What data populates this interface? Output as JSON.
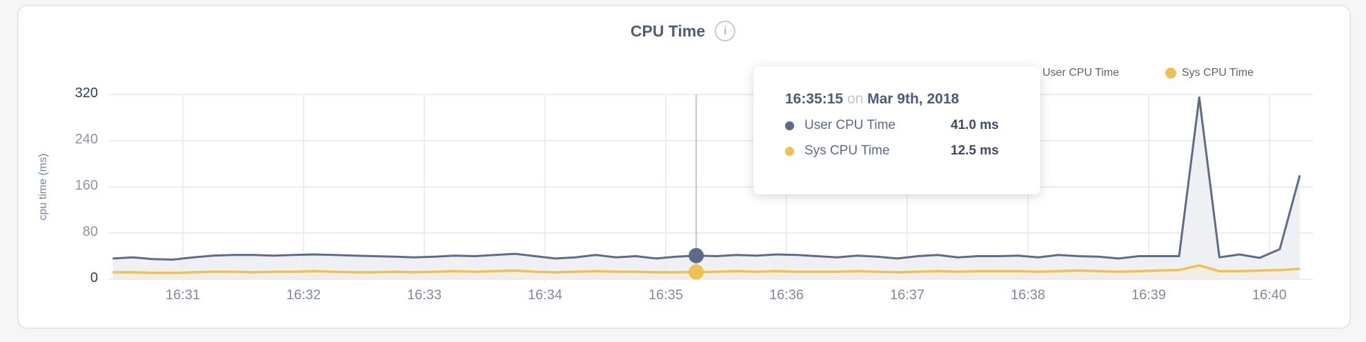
{
  "header": {
    "title": "CPU Time",
    "info_icon": "i"
  },
  "legend": {
    "items": [
      {
        "label": "User CPU Time",
        "color": "#5d6a88"
      },
      {
        "label": "Sys CPU Time",
        "color": "#edc155"
      }
    ]
  },
  "tooltip": {
    "time": "16:35:15",
    "connector": "on",
    "date": "Mar 9th, 2018",
    "rows": [
      {
        "label": "User CPU Time",
        "value": "41.0 ms",
        "color": "#5d6a88"
      },
      {
        "label": "Sys CPU Time",
        "value": "12.5 ms",
        "color": "#edc155"
      }
    ]
  },
  "colors": {
    "user_line": "#5d6a88",
    "sys_line": "#edc155",
    "user_fill": "#eef0f4",
    "sys_fill": "#f1eee5",
    "grid": "#ececec",
    "crosshair": "#c1c3c6",
    "axis_label": "#7f89a1",
    "axis_label_emphasis": "#2e3c59",
    "title": "#4e5c78"
  },
  "chart_data": {
    "type": "area",
    "title": "CPU Time",
    "xlabel": "",
    "ylabel": "cpu time (ms)",
    "ylim": [
      0,
      320
    ],
    "y_ticks": [
      0,
      80,
      160,
      240,
      320
    ],
    "x_ticks": [
      "16:31",
      "16:32",
      "16:33",
      "16:34",
      "16:35",
      "16:36",
      "16:37",
      "16:38",
      "16:39",
      "16:40"
    ],
    "x_range": [
      "16:30:25",
      "16:40:15"
    ],
    "sample_interval_seconds": 10,
    "grid": true,
    "legend_position": "top-right",
    "highlight": {
      "time": "16:35:15",
      "date": "Mar 9th, 2018",
      "user_ms": 41.0,
      "sys_ms": 12.5
    },
    "series": [
      {
        "name": "User CPU Time",
        "unit": "ms",
        "color": "#5d6a88",
        "fill": "#eef0f4",
        "values": [
          36,
          38,
          35,
          34,
          38,
          41,
          42,
          42,
          41,
          42,
          43,
          42,
          41,
          40,
          39,
          38,
          39,
          41,
          40,
          42,
          44,
          40,
          36,
          38,
          42,
          38,
          40,
          36,
          39,
          41,
          40,
          42,
          41,
          43,
          42,
          40,
          38,
          41,
          39,
          36,
          40,
          42,
          38,
          40,
          40,
          41,
          38,
          42,
          40,
          39,
          36,
          40,
          40,
          40,
          315,
          38,
          43,
          37,
          52,
          180
        ]
      },
      {
        "name": "Sys CPU Time",
        "unit": "ms",
        "color": "#edc155",
        "fill": "#f1eee5",
        "values": [
          12,
          12,
          11,
          11,
          12,
          13,
          13,
          12,
          13,
          13,
          14,
          13,
          12,
          12,
          13,
          12,
          13,
          14,
          13,
          14,
          15,
          13,
          12,
          13,
          14,
          13,
          13,
          12,
          12,
          12.5,
          13,
          14,
          13,
          14,
          13,
          13,
          13,
          14,
          13,
          12,
          13,
          14,
          13,
          14,
          14,
          14,
          13,
          14,
          15,
          14,
          13,
          14,
          15,
          16,
          24,
          14,
          14,
          15,
          16,
          18
        ]
      }
    ]
  }
}
